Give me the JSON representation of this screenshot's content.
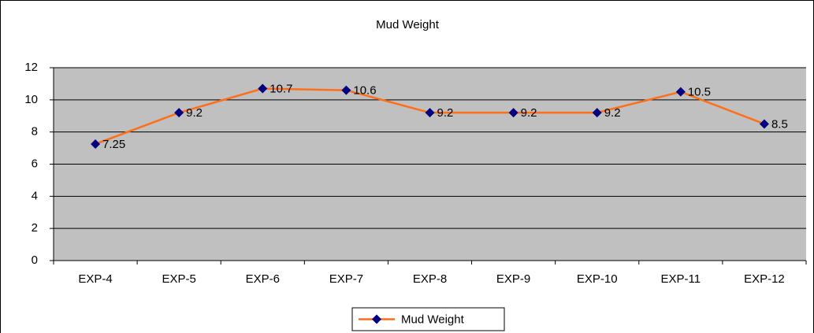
{
  "chart_data": {
    "type": "line",
    "title": "Mud Weight",
    "categories": [
      "EXP-4",
      "EXP-5",
      "EXP-6",
      "EXP-7",
      "EXP-8",
      "EXP-9",
      "EXP-10",
      "EXP-11",
      "EXP-12"
    ],
    "series": [
      {
        "name": "Mud Weight",
        "color": "#ff6f1a",
        "marker_color": "#000080",
        "values": [
          7.25,
          9.2,
          10.7,
          10.6,
          9.2,
          9.2,
          9.2,
          10.5,
          8.5
        ]
      }
    ],
    "ylim": [
      0,
      12
    ],
    "yticks": [
      0,
      2,
      4,
      6,
      8,
      10,
      12
    ],
    "grid": true,
    "legend": "bottom"
  }
}
